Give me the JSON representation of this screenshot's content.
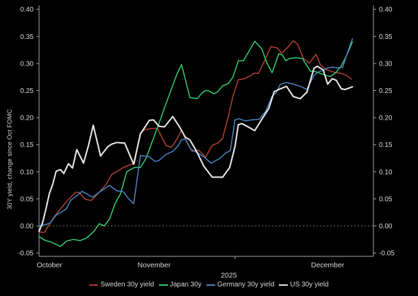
{
  "chart_data": {
    "type": "line",
    "title": "",
    "ylabel": "30Y yield, change since Oct FOMC",
    "x_axis_year_label": "2025",
    "ylim": [
      -0.05,
      0.4
    ],
    "y_tick_labels": [
      "0.40",
      "0.35",
      "0.30",
      "0.25",
      "0.20",
      "0.15",
      "0.10",
      "0.05",
      "0.00",
      "-0.05"
    ],
    "y_ticks": [
      0.4,
      0.35,
      0.3,
      0.25,
      0.2,
      0.15,
      0.1,
      0.05,
      0.0,
      -0.05
    ],
    "zero_line": {
      "value": 0.0,
      "style": "dashed",
      "color": "#8f8f8f"
    },
    "grid": false,
    "background_color": "#000000",
    "axis_color": "#a8a8a8",
    "tick_label_color": "#dcdcdc",
    "x_ticks": [
      {
        "label": "October",
        "f": 0.031
      },
      {
        "label": "November",
        "f": 0.344
      },
      {
        "label": "December",
        "f": 0.863
      }
    ],
    "x_minor_tick_f": 0.586,
    "legend_position": "bottom",
    "series": [
      {
        "name": "Sweden 30y yield",
        "color": "#b54233",
        "width": 1.5,
        "points": [
          [
            0.0,
            -0.011
          ],
          [
            0.016,
            -0.012
          ],
          [
            0.033,
            0.005
          ],
          [
            0.049,
            0.02
          ],
          [
            0.057,
            0.026
          ],
          [
            0.082,
            0.045
          ],
          [
            0.109,
            0.062
          ],
          [
            0.119,
            0.062
          ],
          [
            0.139,
            0.049
          ],
          [
            0.156,
            0.047
          ],
          [
            0.18,
            0.062
          ],
          [
            0.201,
            0.077
          ],
          [
            0.217,
            0.095
          ],
          [
            0.232,
            0.1
          ],
          [
            0.252,
            0.108
          ],
          [
            0.273,
            0.113
          ],
          [
            0.285,
            0.115
          ],
          [
            0.303,
            0.172
          ],
          [
            0.318,
            0.178
          ],
          [
            0.338,
            0.18
          ],
          [
            0.354,
            0.18
          ],
          [
            0.379,
            0.149
          ],
          [
            0.396,
            0.145
          ],
          [
            0.412,
            0.16
          ],
          [
            0.426,
            0.177
          ],
          [
            0.441,
            0.157
          ],
          [
            0.457,
            0.138
          ],
          [
            0.477,
            0.14
          ],
          [
            0.498,
            0.127
          ],
          [
            0.518,
            0.149
          ],
          [
            0.535,
            0.153
          ],
          [
            0.549,
            0.162
          ],
          [
            0.566,
            0.202
          ],
          [
            0.58,
            0.24
          ],
          [
            0.596,
            0.27
          ],
          [
            0.615,
            0.272
          ],
          [
            0.631,
            0.277
          ],
          [
            0.643,
            0.282
          ],
          [
            0.656,
            0.282
          ],
          [
            0.674,
            0.304
          ],
          [
            0.693,
            0.331
          ],
          [
            0.711,
            0.329
          ],
          [
            0.725,
            0.319
          ],
          [
            0.744,
            0.33
          ],
          [
            0.76,
            0.342
          ],
          [
            0.773,
            0.336
          ],
          [
            0.791,
            0.309
          ],
          [
            0.809,
            0.301
          ],
          [
            0.828,
            0.317
          ],
          [
            0.842,
            0.297
          ],
          [
            0.859,
            0.289
          ],
          [
            0.875,
            0.285
          ],
          [
            0.891,
            0.283
          ],
          [
            0.908,
            0.281
          ],
          [
            0.922,
            0.277
          ],
          [
            0.934,
            0.271
          ]
        ]
      },
      {
        "name": "Japan 30y",
        "color": "#31d373",
        "width": 1.5,
        "points": [
          [
            0.0,
            -0.02
          ],
          [
            0.016,
            -0.026
          ],
          [
            0.037,
            -0.03
          ],
          [
            0.064,
            -0.038
          ],
          [
            0.082,
            -0.028
          ],
          [
            0.102,
            -0.025
          ],
          [
            0.123,
            -0.027
          ],
          [
            0.143,
            -0.022
          ],
          [
            0.164,
            -0.01
          ],
          [
            0.18,
            0.004
          ],
          [
            0.195,
            0.0
          ],
          [
            0.211,
            0.013
          ],
          [
            0.227,
            0.041
          ],
          [
            0.244,
            0.06
          ],
          [
            0.262,
            0.1
          ],
          [
            0.285,
            0.108
          ],
          [
            0.303,
            0.108
          ],
          [
            0.32,
            0.125
          ],
          [
            0.338,
            0.155
          ],
          [
            0.359,
            0.19
          ],
          [
            0.379,
            0.225
          ],
          [
            0.4,
            0.26
          ],
          [
            0.412,
            0.28
          ],
          [
            0.426,
            0.298
          ],
          [
            0.441,
            0.262
          ],
          [
            0.451,
            0.237
          ],
          [
            0.463,
            0.236
          ],
          [
            0.473,
            0.235
          ],
          [
            0.488,
            0.246
          ],
          [
            0.498,
            0.25
          ],
          [
            0.506,
            0.25
          ],
          [
            0.523,
            0.244
          ],
          [
            0.535,
            0.248
          ],
          [
            0.549,
            0.259
          ],
          [
            0.566,
            0.263
          ],
          [
            0.58,
            0.275
          ],
          [
            0.596,
            0.305
          ],
          [
            0.611,
            0.305
          ],
          [
            0.627,
            0.322
          ],
          [
            0.645,
            0.341
          ],
          [
            0.666,
            0.327
          ],
          [
            0.682,
            0.3
          ],
          [
            0.697,
            0.283
          ],
          [
            0.717,
            0.318
          ],
          [
            0.727,
            0.316
          ],
          [
            0.738,
            0.305
          ],
          [
            0.748,
            0.309
          ],
          [
            0.768,
            0.311
          ],
          [
            0.788,
            0.309
          ],
          [
            0.811,
            0.286
          ],
          [
            0.826,
            0.285
          ],
          [
            0.84,
            0.282
          ],
          [
            0.857,
            0.278
          ],
          [
            0.871,
            0.276
          ],
          [
            0.887,
            0.283
          ],
          [
            0.902,
            0.294
          ],
          [
            0.916,
            0.31
          ],
          [
            0.926,
            0.324
          ],
          [
            0.937,
            0.34
          ]
        ]
      },
      {
        "name": "Germany 30y yield",
        "color": "#4d87c7",
        "width": 1.5,
        "points": [
          [
            0.0,
            0.0
          ],
          [
            0.016,
            0.002
          ],
          [
            0.033,
            0.005
          ],
          [
            0.051,
            0.02
          ],
          [
            0.068,
            0.026
          ],
          [
            0.082,
            0.032
          ],
          [
            0.094,
            0.047
          ],
          [
            0.115,
            0.057
          ],
          [
            0.129,
            0.064
          ],
          [
            0.146,
            0.058
          ],
          [
            0.16,
            0.053
          ],
          [
            0.18,
            0.062
          ],
          [
            0.201,
            0.071
          ],
          [
            0.211,
            0.075
          ],
          [
            0.232,
            0.065
          ],
          [
            0.252,
            0.063
          ],
          [
            0.268,
            0.05
          ],
          [
            0.283,
            0.041
          ],
          [
            0.303,
            0.13
          ],
          [
            0.328,
            0.128
          ],
          [
            0.348,
            0.119
          ],
          [
            0.359,
            0.121
          ],
          [
            0.379,
            0.132
          ],
          [
            0.4,
            0.138
          ],
          [
            0.416,
            0.148
          ],
          [
            0.426,
            0.159
          ],
          [
            0.437,
            0.161
          ],
          [
            0.453,
            0.142
          ],
          [
            0.471,
            0.136
          ],
          [
            0.492,
            0.128
          ],
          [
            0.514,
            0.116
          ],
          [
            0.539,
            0.124
          ],
          [
            0.559,
            0.135
          ],
          [
            0.572,
            0.139
          ],
          [
            0.586,
            0.196
          ],
          [
            0.598,
            0.198
          ],
          [
            0.617,
            0.194
          ],
          [
            0.637,
            0.196
          ],
          [
            0.658,
            0.197
          ],
          [
            0.678,
            0.212
          ],
          [
            0.697,
            0.24
          ],
          [
            0.709,
            0.246
          ],
          [
            0.721,
            0.261
          ],
          [
            0.74,
            0.265
          ],
          [
            0.76,
            0.262
          ],
          [
            0.781,
            0.258
          ],
          [
            0.801,
            0.252
          ],
          [
            0.822,
            0.278
          ],
          [
            0.836,
            0.285
          ],
          [
            0.85,
            0.287
          ],
          [
            0.863,
            0.292
          ],
          [
            0.879,
            0.293
          ],
          [
            0.893,
            0.292
          ],
          [
            0.908,
            0.293
          ],
          [
            0.918,
            0.312
          ],
          [
            0.928,
            0.33
          ],
          [
            0.937,
            0.346
          ]
        ]
      },
      {
        "name": "US 30y yield",
        "color": "#e9e9ec",
        "width": 2.1,
        "points": [
          [
            0.0,
            -0.01
          ],
          [
            0.01,
            0.005
          ],
          [
            0.02,
            0.03
          ],
          [
            0.031,
            0.06
          ],
          [
            0.041,
            0.077
          ],
          [
            0.051,
            0.101
          ],
          [
            0.064,
            0.104
          ],
          [
            0.074,
            0.097
          ],
          [
            0.088,
            0.115
          ],
          [
            0.1,
            0.107
          ],
          [
            0.113,
            0.141
          ],
          [
            0.133,
            0.116
          ],
          [
            0.148,
            0.149
          ],
          [
            0.162,
            0.186
          ],
          [
            0.184,
            0.129
          ],
          [
            0.205,
            0.146
          ],
          [
            0.217,
            0.151
          ],
          [
            0.232,
            0.154
          ],
          [
            0.256,
            0.153
          ],
          [
            0.283,
            0.114
          ],
          [
            0.303,
            0.17
          ],
          [
            0.33,
            0.195
          ],
          [
            0.342,
            0.196
          ],
          [
            0.359,
            0.184
          ],
          [
            0.375,
            0.183
          ],
          [
            0.4,
            0.202
          ],
          [
            0.42,
            0.183
          ],
          [
            0.437,
            0.164
          ],
          [
            0.451,
            0.159
          ],
          [
            0.471,
            0.138
          ],
          [
            0.492,
            0.111
          ],
          [
            0.518,
            0.09
          ],
          [
            0.549,
            0.09
          ],
          [
            0.57,
            0.108
          ],
          [
            0.586,
            0.147
          ],
          [
            0.596,
            0.187
          ],
          [
            0.607,
            0.189
          ],
          [
            0.625,
            0.183
          ],
          [
            0.645,
            0.176
          ],
          [
            0.666,
            0.197
          ],
          [
            0.687,
            0.217
          ],
          [
            0.703,
            0.248
          ],
          [
            0.721,
            0.253
          ],
          [
            0.74,
            0.258
          ],
          [
            0.76,
            0.239
          ],
          [
            0.781,
            0.235
          ],
          [
            0.801,
            0.247
          ],
          [
            0.822,
            0.291
          ],
          [
            0.832,
            0.295
          ],
          [
            0.85,
            0.288
          ],
          [
            0.863,
            0.262
          ],
          [
            0.877,
            0.272
          ],
          [
            0.889,
            0.269
          ],
          [
            0.904,
            0.253
          ],
          [
            0.916,
            0.252
          ],
          [
            0.937,
            0.257
          ]
        ]
      }
    ]
  }
}
